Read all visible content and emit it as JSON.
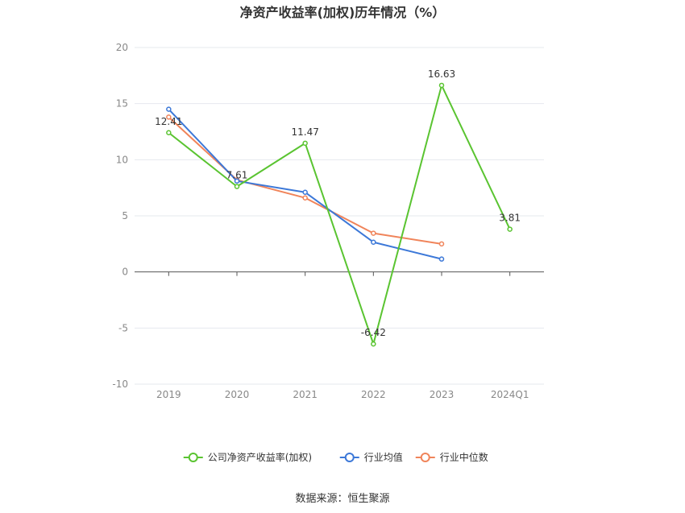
{
  "chart_data": {
    "type": "line",
    "title": "净资产收益率(加权)历年情况（%）",
    "categories": [
      "2019",
      "2020",
      "2021",
      "2022",
      "2023",
      "2024Q1"
    ],
    "ylim": [
      -10,
      20
    ],
    "yticks": [
      20,
      15,
      10,
      5,
      0,
      -5,
      -10
    ],
    "grid": true,
    "legend_position": "bottom",
    "series": [
      {
        "name": "公司净资产收益率(加权)",
        "color": "#5ac431",
        "values": [
          12.41,
          7.61,
          11.47,
          -6.42,
          16.63,
          3.81
        ],
        "labels": [
          "12.41",
          "7.61",
          "11.47",
          "-6.42",
          "16.63",
          "3.81"
        ]
      },
      {
        "name": "行业均值",
        "color": "#3c78d8",
        "values": [
          14.5,
          8.1,
          7.1,
          2.65,
          1.15,
          null
        ]
      },
      {
        "name": "行业中位数",
        "color": "#f0845a",
        "values": [
          13.8,
          8.2,
          6.6,
          3.45,
          2.5,
          null
        ]
      }
    ]
  },
  "source": "数据来源：恒生聚源"
}
